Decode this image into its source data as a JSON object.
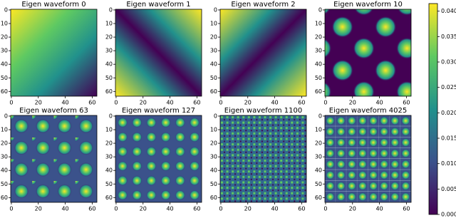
{
  "chart_data": [
    {
      "type": "heatmap",
      "title": "Eigen waveform 0",
      "xlim": [
        -0.5,
        63.5
      ],
      "ylim": [
        63.5,
        -0.5
      ],
      "xticks": [
        0,
        20,
        40,
        60
      ],
      "yticks": [
        0,
        10,
        20,
        30,
        40,
        50,
        60
      ]
    },
    {
      "type": "heatmap",
      "title": "Eigen waveform 1",
      "xlim": [
        -0.5,
        63.5
      ],
      "ylim": [
        63.5,
        -0.5
      ],
      "xticks": [
        0,
        20,
        40,
        60
      ],
      "yticks": [
        0,
        10,
        20,
        30,
        40,
        50,
        60
      ]
    },
    {
      "type": "heatmap",
      "title": "Eigen waveform 2",
      "xlim": [
        -0.5,
        63.5
      ],
      "ylim": [
        63.5,
        -0.5
      ],
      "xticks": [
        0,
        20,
        40,
        60
      ],
      "yticks": [
        0,
        10,
        20,
        30,
        40,
        50,
        60
      ]
    },
    {
      "type": "heatmap",
      "title": "Eigen waveform 10",
      "xlim": [
        -0.5,
        63.5
      ],
      "ylim": [
        63.5,
        -0.5
      ],
      "xticks": [
        0,
        20,
        40,
        60
      ],
      "yticks": [
        0,
        10,
        20,
        30,
        40,
        50,
        60
      ]
    },
    {
      "type": "heatmap",
      "title": "Eigen waveform 63",
      "xlim": [
        -0.5,
        63.5
      ],
      "ylim": [
        63.5,
        -0.5
      ],
      "xticks": [
        0,
        20,
        40,
        60
      ],
      "yticks": [
        0,
        10,
        20,
        30,
        40,
        50,
        60
      ]
    },
    {
      "type": "heatmap",
      "title": "Eigen waveform 127",
      "xlim": [
        -0.5,
        63.5
      ],
      "ylim": [
        63.5,
        -0.5
      ],
      "xticks": [
        0,
        20,
        40,
        60
      ],
      "yticks": [
        0,
        10,
        20,
        30,
        40,
        50,
        60
      ]
    },
    {
      "type": "heatmap",
      "title": "Eigen waveform 1100",
      "xlim": [
        -0.5,
        63.5
      ],
      "ylim": [
        63.5,
        -0.5
      ],
      "xticks": [
        0,
        20,
        40,
        60
      ],
      "yticks": [
        0,
        10,
        20,
        30,
        40,
        50,
        60
      ]
    },
    {
      "type": "heatmap",
      "title": "Eigen waveform 4025",
      "xlim": [
        -0.5,
        63.5
      ],
      "ylim": [
        63.5,
        -0.5
      ],
      "xticks": [
        0,
        20,
        40,
        60
      ],
      "yticks": [
        0,
        10,
        20,
        30,
        40,
        50,
        60
      ]
    }
  ],
  "colorbar": {
    "lim": [
      0,
      0.0415
    ],
    "colormap": "viridis",
    "ticks": [
      {
        "value": 0,
        "label": "0.000"
      },
      {
        "value": 0.005,
        "label": "0.005"
      },
      {
        "value": 0.01,
        "label": "0.010"
      },
      {
        "value": 0.015,
        "label": "0.015"
      },
      {
        "value": 0.02,
        "label": "0.020"
      },
      {
        "value": 0.025,
        "label": "0.025"
      },
      {
        "value": 0.03,
        "label": "0.030"
      },
      {
        "value": 0.035,
        "label": "0.035"
      },
      {
        "value": 0.04,
        "label": "0.040"
      }
    ]
  }
}
